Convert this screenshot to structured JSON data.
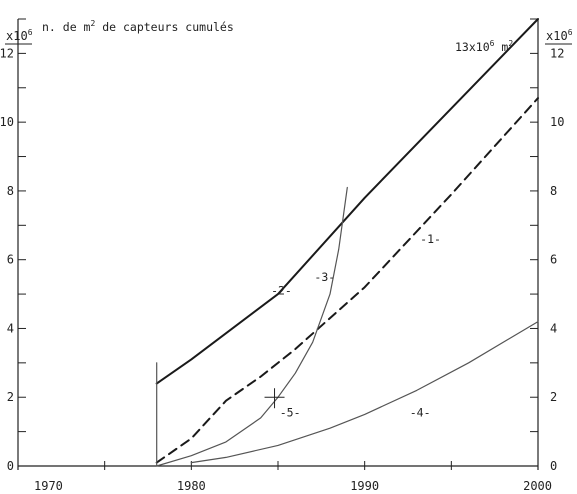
{
  "chart_data": {
    "type": "line",
    "title": "n. de m² de capteurs cumulés",
    "title_parts": {
      "pre": "n. de m",
      "sup": "2",
      "post": " de capteurs cumulés"
    },
    "xlim": [
      1970,
      2000
    ],
    "ylim_left": [
      0,
      13
    ],
    "ylim_right": [
      0,
      13
    ],
    "x_ticks": [
      1970,
      1975,
      1980,
      1985,
      1990,
      1995,
      2000
    ],
    "x_tick_labels": [
      "1970",
      "1980",
      "1990",
      "2000"
    ],
    "x_tick_label_values": [
      1970,
      1980,
      1990,
      2000
    ],
    "y_left_ticks": [
      0,
      1,
      2,
      3,
      4,
      5,
      6,
      7,
      8,
      9,
      10,
      11,
      12,
      13
    ],
    "y_left_tick_labels": [
      "0",
      "2",
      "4",
      "6",
      "8",
      "10",
      "12"
    ],
    "y_left_tick_label_values": [
      0,
      2,
      4,
      6,
      8,
      10,
      12
    ],
    "y_right_ticks": [
      0,
      1,
      2,
      3,
      4,
      5,
      6,
      7,
      8,
      9,
      10,
      11,
      12,
      13
    ],
    "y_right_tick_labels": [
      "0",
      "2",
      "4",
      "6",
      "8",
      "10",
      "12"
    ],
    "y_right_tick_label_values": [
      0,
      2,
      4,
      6,
      8,
      10,
      12
    ],
    "y_left_multiplier": {
      "base": "x10",
      "exp": "6"
    },
    "y_right_multiplier": {
      "base": "x10",
      "exp": "6"
    },
    "end_annotation": {
      "base": "13x10",
      "exp": "6",
      "unit": " m",
      "unit_exp": "2"
    },
    "grid": false,
    "legend": "none",
    "series": [
      {
        "name": "-1-",
        "style": "dashed",
        "color": "#1a1a1a",
        "x": [
          1978,
          1980,
          1982,
          1984,
          1986,
          1988,
          1990,
          1995,
          2000
        ],
        "y": [
          0.1,
          0.8,
          1.9,
          2.6,
          3.4,
          4.3,
          5.2,
          7.9,
          10.7
        ]
      },
      {
        "name": "-2-",
        "style": "solid",
        "color": "#1a1a1a",
        "x": [
          1978,
          1980,
          1985,
          1990,
          1995,
          2000
        ],
        "y": [
          2.4,
          3.1,
          5.0,
          7.8,
          10.4,
          13.0
        ]
      },
      {
        "name": "-3-",
        "style": "solid",
        "color": "#555555",
        "x": [
          1978,
          1980,
          1982,
          1984,
          1985,
          1986,
          1987,
          1988,
          1988.5,
          1989
        ],
        "y": [
          0.0,
          0.3,
          0.7,
          1.4,
          2.0,
          2.7,
          3.6,
          5.0,
          6.3,
          8.1
        ]
      },
      {
        "name": "-4-",
        "style": "solid",
        "color": "#555555",
        "x": [
          1980,
          1982,
          1985,
          1988,
          1990,
          1993,
          1996,
          2000
        ],
        "y": [
          0.1,
          0.25,
          0.6,
          1.1,
          1.5,
          2.2,
          3.0,
          4.2
        ]
      },
      {
        "name": "-5-",
        "style": "solid",
        "color": "#555555",
        "x": [
          1978,
          1978
        ],
        "y": [
          0.0,
          3.0
        ]
      }
    ],
    "annotations": [
      {
        "text": "-1-",
        "x": 1993.8,
        "y": 6.6
      },
      {
        "text": "-2-",
        "x": 1985.2,
        "y": 5.1
      },
      {
        "text": "-3-",
        "x": 1987.7,
        "y": 5.5
      },
      {
        "text": "-4-",
        "x": 1993.2,
        "y": 1.55
      },
      {
        "text": "-5-",
        "x": 1985.7,
        "y": 1.55
      }
    ]
  }
}
